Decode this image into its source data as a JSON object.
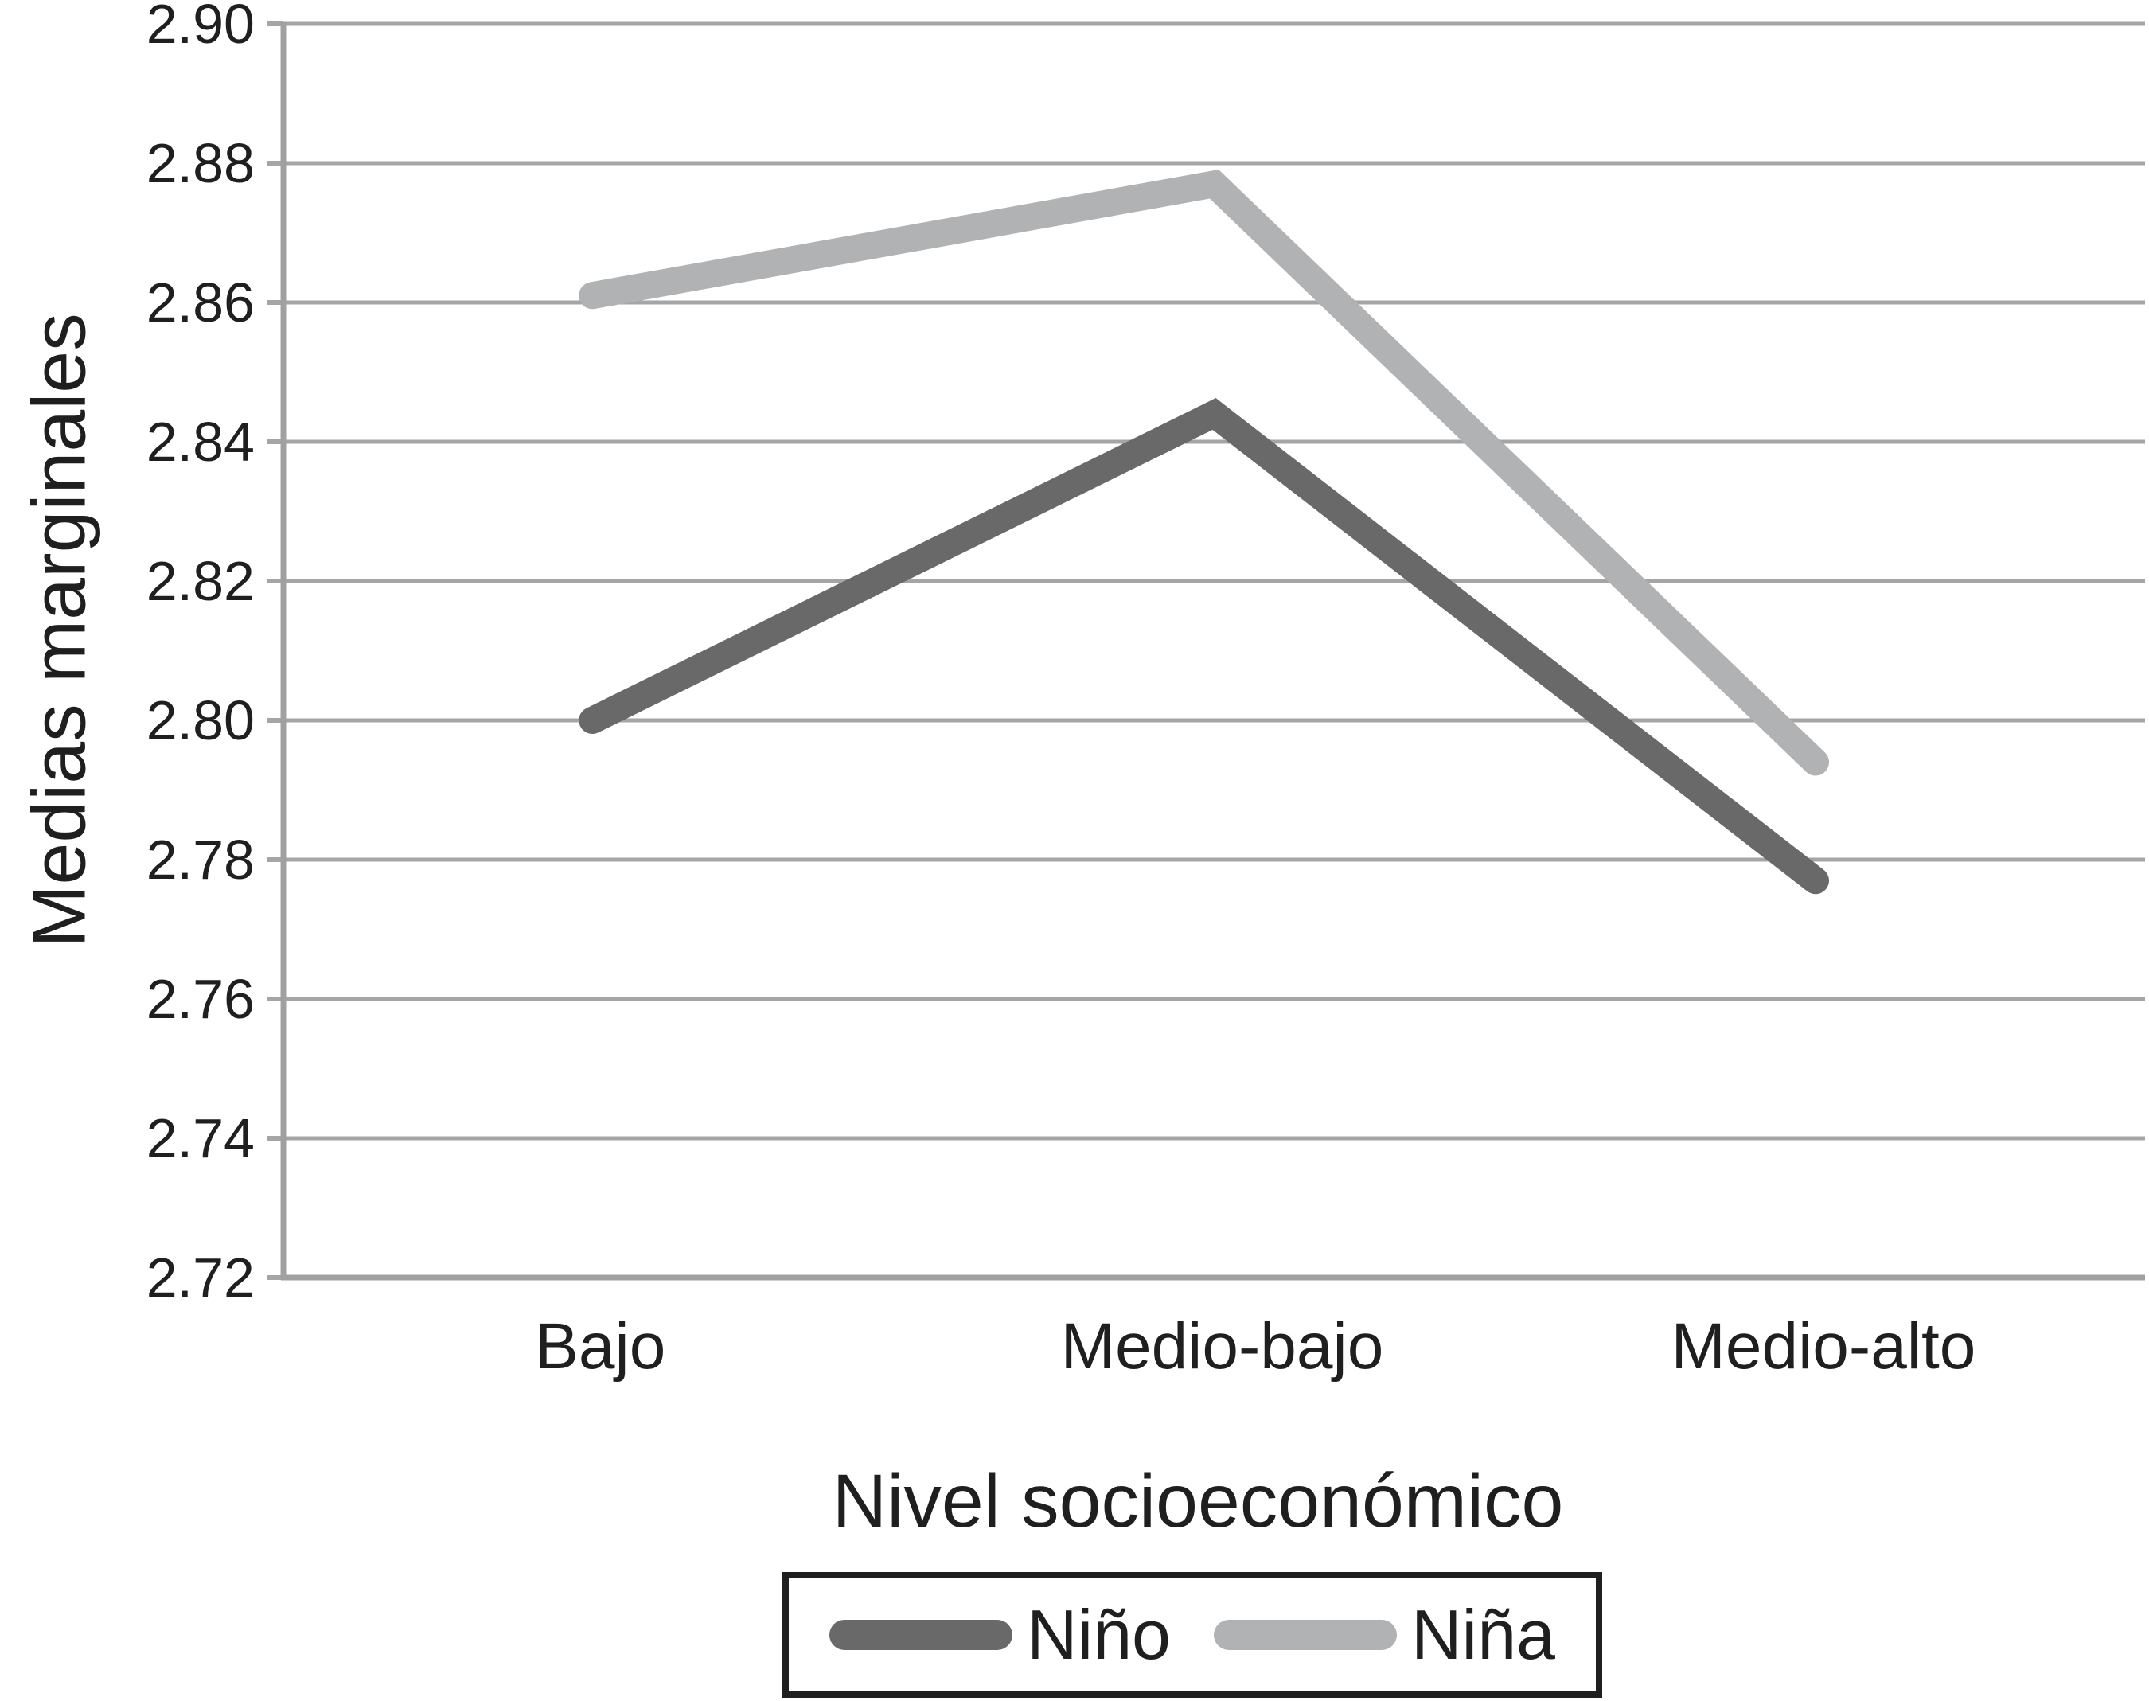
{
  "chart_data": {
    "type": "line",
    "title": "",
    "xlabel": "Nivel socioeconómico",
    "ylabel": "Medias marginales",
    "categories": [
      "Bajo",
      "Medio-bajo",
      "Medio-alto"
    ],
    "series": [
      {
        "name": "Niño",
        "color": "#696969",
        "values": [
          2.8,
          2.844,
          2.777
        ]
      },
      {
        "name": "Niña",
        "color": "#b0b2b4",
        "values": [
          2.861,
          2.877,
          2.794
        ]
      }
    ],
    "ylim": [
      2.72,
      2.9
    ],
    "ytick_step": 0.02,
    "yticks": [
      "2.90",
      "2.88",
      "2.86",
      "2.84",
      "2.82",
      "2.80",
      "2.78",
      "2.76",
      "2.74",
      "2.72"
    ],
    "grid": "horizontal",
    "legend_position": "bottom-center",
    "colors": {
      "grid": "#a5a5a5",
      "axis": "#a0a0a0",
      "text": "#1f1f1f",
      "legend_border": "#1f1f1f",
      "background": "#ffffff"
    }
  }
}
